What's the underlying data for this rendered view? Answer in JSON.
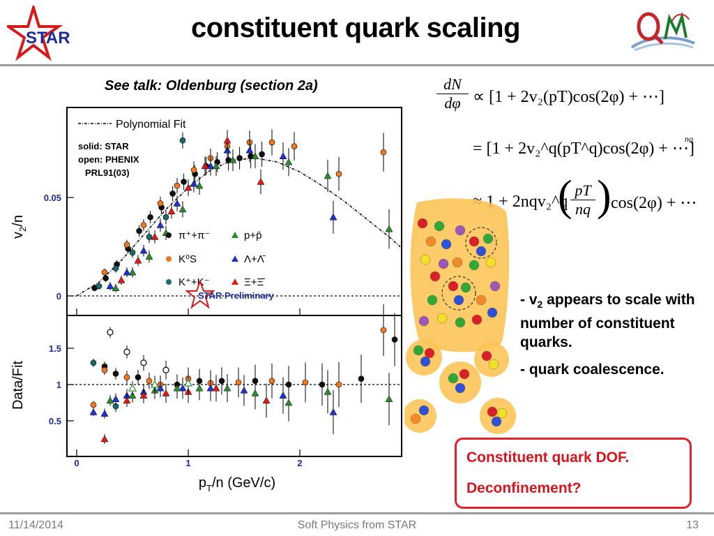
{
  "slide": {
    "title": "constituent quark scaling",
    "talk_ref": "See talk: Oldenburg (section 2a)",
    "logo_text": "STAR"
  },
  "plot": {
    "legend_fit": "Polynomial Fit",
    "note_lines": [
      "solid: STAR",
      "open: PHENIX",
      "PRL91(03)"
    ],
    "species": [
      {
        "label": "π⁺+π⁻",
        "color": "#111111",
        "marker": "circle"
      },
      {
        "label": "p+p̄",
        "color": "#2e8b2e",
        "marker": "triangle"
      },
      {
        "label": "K⁰S",
        "color": "#f07820",
        "marker": "circle"
      },
      {
        "label": "Λ+Λ̄",
        "color": "#1e32d0",
        "marker": "triangle"
      },
      {
        "label": "K⁺+K⁻",
        "color": "#1a6b6b",
        "marker": "circle"
      },
      {
        "label": "Ξ+Ξ̄",
        "color": "#e01818",
        "marker": "triangle"
      }
    ],
    "preliminary": "STAR Preliminary",
    "top_ylabel": "v2/n",
    "bottom_ylabel": "Data/Fit",
    "xlabel": "pT/n (GeV/c)",
    "top_yticks": [
      "0.05",
      "0"
    ],
    "bottom_yticks": [
      "1.5",
      "1",
      "0.5"
    ],
    "xticks": [
      "0",
      "1",
      "2"
    ]
  },
  "chart_data": {
    "type": "scatter",
    "title": "",
    "xlabel": "pT/n (GeV/c)",
    "ylabel": "v2/n",
    "xlim": [
      -0.1,
      2.9
    ],
    "ylim": [
      -0.004,
      0.094
    ],
    "fit": {
      "name": "Polynomial Fit",
      "x": [
        0.0,
        0.2,
        0.4,
        0.6,
        0.8,
        1.0,
        1.2,
        1.4,
        1.6,
        1.8,
        2.0,
        2.2,
        2.4,
        2.6,
        2.8,
        2.9
      ],
      "y": [
        0.0,
        0.007,
        0.018,
        0.031,
        0.044,
        0.055,
        0.064,
        0.069,
        0.07,
        0.068,
        0.063,
        0.056,
        0.048,
        0.039,
        0.03,
        0.025
      ]
    },
    "series": [
      {
        "name": "π⁺+π⁻",
        "x": [
          0.16,
          0.26,
          0.36,
          0.46,
          0.56,
          0.66,
          0.76,
          0.86,
          0.96,
          1.06,
          1.16,
          1.26,
          1.36,
          1.46,
          1.56,
          1.66
        ],
        "y": [
          0.004,
          0.009,
          0.016,
          0.024,
          0.033,
          0.04,
          0.045,
          0.052,
          0.058,
          0.062,
          0.066,
          0.068,
          0.069,
          0.07,
          0.071,
          0.072
        ]
      },
      {
        "name": "K⁰S",
        "x": [
          0.25,
          0.45,
          0.6,
          0.75,
          0.9,
          1.05,
          1.2,
          1.35,
          1.55,
          1.75,
          1.95,
          2.35,
          2.75
        ],
        "y": [
          0.012,
          0.026,
          0.036,
          0.047,
          0.056,
          0.064,
          0.07,
          0.076,
          0.078,
          0.078,
          0.076,
          0.062,
          0.073
        ]
      },
      {
        "name": "K⁺+K⁻",
        "x": [
          0.2,
          0.35,
          0.5,
          0.65,
          0.8,
          0.95
        ],
        "y": [
          0.005,
          0.014,
          0.022,
          0.03,
          0.04,
          0.079
        ]
      },
      {
        "name": "p+p̄",
        "x": [
          0.35,
          0.5,
          0.65,
          0.8,
          0.95,
          1.1,
          1.25,
          1.4,
          1.6,
          1.9,
          2.25,
          2.8
        ],
        "y": [
          0.004,
          0.012,
          0.02,
          0.032,
          0.044,
          0.056,
          0.066,
          0.069,
          0.071,
          0.068,
          0.061,
          0.034
        ]
      },
      {
        "name": "Λ+Λ̄",
        "x": [
          0.3,
          0.45,
          0.6,
          0.75,
          0.9,
          1.05,
          1.2,
          1.35,
          1.55,
          1.85,
          2.3
        ],
        "y": [
          0.005,
          0.012,
          0.023,
          0.036,
          0.047,
          0.057,
          0.066,
          0.074,
          0.074,
          0.071,
          0.04
        ]
      },
      {
        "name": "Ξ+Ξ̄",
        "x": [
          0.4,
          0.55,
          0.7,
          0.85,
          1.0,
          1.15,
          1.35,
          1.65
        ],
        "y": [
          0.008,
          0.018,
          0.03,
          0.043,
          0.055,
          0.066,
          0.079,
          0.058
        ]
      }
    ],
    "ratio_panel": {
      "ylabel": "Data/Fit",
      "ylim": [
        0.05,
        2.0
      ],
      "points": [
        {
          "x": 0.15,
          "y": 1.3,
          "c": "#1a6b6b",
          "m": "c"
        },
        {
          "x": 0.25,
          "y": 1.25,
          "c": "#111111",
          "m": "c"
        },
        {
          "x": 0.25,
          "y": 1.2,
          "c": "#f07820",
          "m": "c"
        },
        {
          "x": 0.35,
          "y": 1.15,
          "c": "#111111",
          "m": "c"
        },
        {
          "x": 0.45,
          "y": 1.1,
          "c": "#f07820",
          "m": "c"
        },
        {
          "x": 0.55,
          "y": 1.1,
          "c": "#111111",
          "m": "c"
        },
        {
          "x": 0.65,
          "y": 1.05,
          "c": "#f07820",
          "m": "c"
        },
        {
          "x": 0.75,
          "y": 1.0,
          "c": "#f07820",
          "m": "c"
        },
        {
          "x": 0.9,
          "y": 1.0,
          "c": "#111111",
          "m": "c"
        },
        {
          "x": 1.0,
          "y": 1.08,
          "c": "#f07820",
          "m": "c"
        },
        {
          "x": 1.1,
          "y": 1.05,
          "c": "#111111",
          "m": "c"
        },
        {
          "x": 1.2,
          "y": 1.02,
          "c": "#f07820",
          "m": "c"
        },
        {
          "x": 1.3,
          "y": 1.05,
          "c": "#111111",
          "m": "c"
        },
        {
          "x": 1.45,
          "y": 1.03,
          "c": "#f07820",
          "m": "c"
        },
        {
          "x": 1.6,
          "y": 1.05,
          "c": "#111111",
          "m": "c"
        },
        {
          "x": 1.75,
          "y": 1.05,
          "c": "#f07820",
          "m": "c"
        },
        {
          "x": 1.9,
          "y": 1.0,
          "c": "#111111",
          "m": "c"
        },
        {
          "x": 2.05,
          "y": 1.03,
          "c": "#f07820",
          "m": "c"
        },
        {
          "x": 2.2,
          "y": 1.0,
          "c": "#111111",
          "m": "c"
        },
        {
          "x": 2.35,
          "y": 1.0,
          "c": "#f07820",
          "m": "c"
        },
        {
          "x": 2.55,
          "y": 1.08,
          "c": "#111111",
          "m": "c"
        },
        {
          "x": 2.75,
          "y": 1.75,
          "c": "#f07820",
          "m": "c"
        },
        {
          "x": 2.85,
          "y": 1.62,
          "c": "#111111",
          "m": "c"
        },
        {
          "x": 0.3,
          "y": 1.72,
          "c": "#111111",
          "m": "o"
        },
        {
          "x": 0.45,
          "y": 1.45,
          "c": "#111111",
          "m": "o"
        },
        {
          "x": 0.6,
          "y": 1.3,
          "c": "#111111",
          "m": "o"
        },
        {
          "x": 0.8,
          "y": 1.2,
          "c": "#111111",
          "m": "o"
        },
        {
          "x": 0.15,
          "y": 0.72,
          "c": "#f07820",
          "m": "c"
        },
        {
          "x": 0.35,
          "y": 0.7,
          "c": "#1a6b6b",
          "m": "c"
        },
        {
          "x": 0.15,
          "y": 0.62,
          "c": "#1e32d0",
          "m": "t"
        },
        {
          "x": 0.25,
          "y": 0.6,
          "c": "#1e32d0",
          "m": "t"
        },
        {
          "x": 0.35,
          "y": 0.8,
          "c": "#1e32d0",
          "m": "t"
        },
        {
          "x": 0.45,
          "y": 0.85,
          "c": "#1e32d0",
          "m": "t"
        },
        {
          "x": 0.6,
          "y": 0.9,
          "c": "#1e32d0",
          "m": "t"
        },
        {
          "x": 0.75,
          "y": 0.95,
          "c": "#1e32d0",
          "m": "t"
        },
        {
          "x": 0.95,
          "y": 0.95,
          "c": "#1e32d0",
          "m": "t"
        },
        {
          "x": 1.2,
          "y": 0.95,
          "c": "#1e32d0",
          "m": "t"
        },
        {
          "x": 1.5,
          "y": 0.92,
          "c": "#1e32d0",
          "m": "t"
        },
        {
          "x": 1.85,
          "y": 0.85,
          "c": "#1e32d0",
          "m": "t"
        },
        {
          "x": 2.3,
          "y": 0.62,
          "c": "#1e32d0",
          "m": "t"
        },
        {
          "x": 0.3,
          "y": 0.78,
          "c": "#2e8b2e",
          "m": "t"
        },
        {
          "x": 0.5,
          "y": 0.85,
          "c": "#2e8b2e",
          "m": "t"
        },
        {
          "x": 0.7,
          "y": 0.92,
          "c": "#2e8b2e",
          "m": "t"
        },
        {
          "x": 0.9,
          "y": 0.95,
          "c": "#2e8b2e",
          "m": "t"
        },
        {
          "x": 1.1,
          "y": 0.95,
          "c": "#2e8b2e",
          "m": "t"
        },
        {
          "x": 1.35,
          "y": 0.95,
          "c": "#2e8b2e",
          "m": "t"
        },
        {
          "x": 1.6,
          "y": 0.88,
          "c": "#2e8b2e",
          "m": "t"
        },
        {
          "x": 1.9,
          "y": 0.75,
          "c": "#2e8b2e",
          "m": "t"
        },
        {
          "x": 2.25,
          "y": 0.9,
          "c": "#2e8b2e",
          "m": "t"
        },
        {
          "x": 2.8,
          "y": 0.8,
          "c": "#2e8b2e",
          "m": "t"
        },
        {
          "x": 0.25,
          "y": 0.25,
          "c": "#e01818",
          "m": "t"
        },
        {
          "x": 0.45,
          "y": 0.78,
          "c": "#e01818",
          "m": "t"
        },
        {
          "x": 0.6,
          "y": 0.85,
          "c": "#e01818",
          "m": "t"
        },
        {
          "x": 0.8,
          "y": 0.88,
          "c": "#e01818",
          "m": "t"
        },
        {
          "x": 1.0,
          "y": 0.9,
          "c": "#e01818",
          "m": "t"
        },
        {
          "x": 1.25,
          "y": 0.95,
          "c": "#e01818",
          "m": "t"
        },
        {
          "x": 1.7,
          "y": 0.78,
          "c": "#e01818",
          "m": "t"
        },
        {
          "x": 0.5,
          "y": 0.95,
          "c": "#2e8b2e",
          "m": "ot"
        },
        {
          "x": 0.7,
          "y": 1.0,
          "c": "#2e8b2e",
          "m": "ot"
        },
        {
          "x": 1.0,
          "y": 1.02,
          "c": "#2e8b2e",
          "m": "ot"
        }
      ]
    }
  },
  "equations": {
    "lhs_top": "dN",
    "lhs_bottom": "dφ",
    "line1": "∝ [1 + 2v₂(pT)cos(2φ) + ⋯]",
    "line2": "= [1 + 2v₂^q(pT^q)cos(2φ) + ⋯]",
    "line2_exp": "nq",
    "line3_prefix": "≈ 1 + 2nqv₂^q",
    "line3_frac_top": "pT",
    "line3_frac_bottom": "nq",
    "line3_suffix": "cos(2φ) + ⋯"
  },
  "bullets": [
    "- v2 appears to scale with number of constituent quarks.",
    "- quark coalescence."
  ],
  "callout": {
    "line1": "Constituent quark DOF.",
    "line2": "Deconfinement?"
  },
  "footer": {
    "date": "11/14/2014",
    "center": "Soft Physics from STAR",
    "page": "13"
  }
}
